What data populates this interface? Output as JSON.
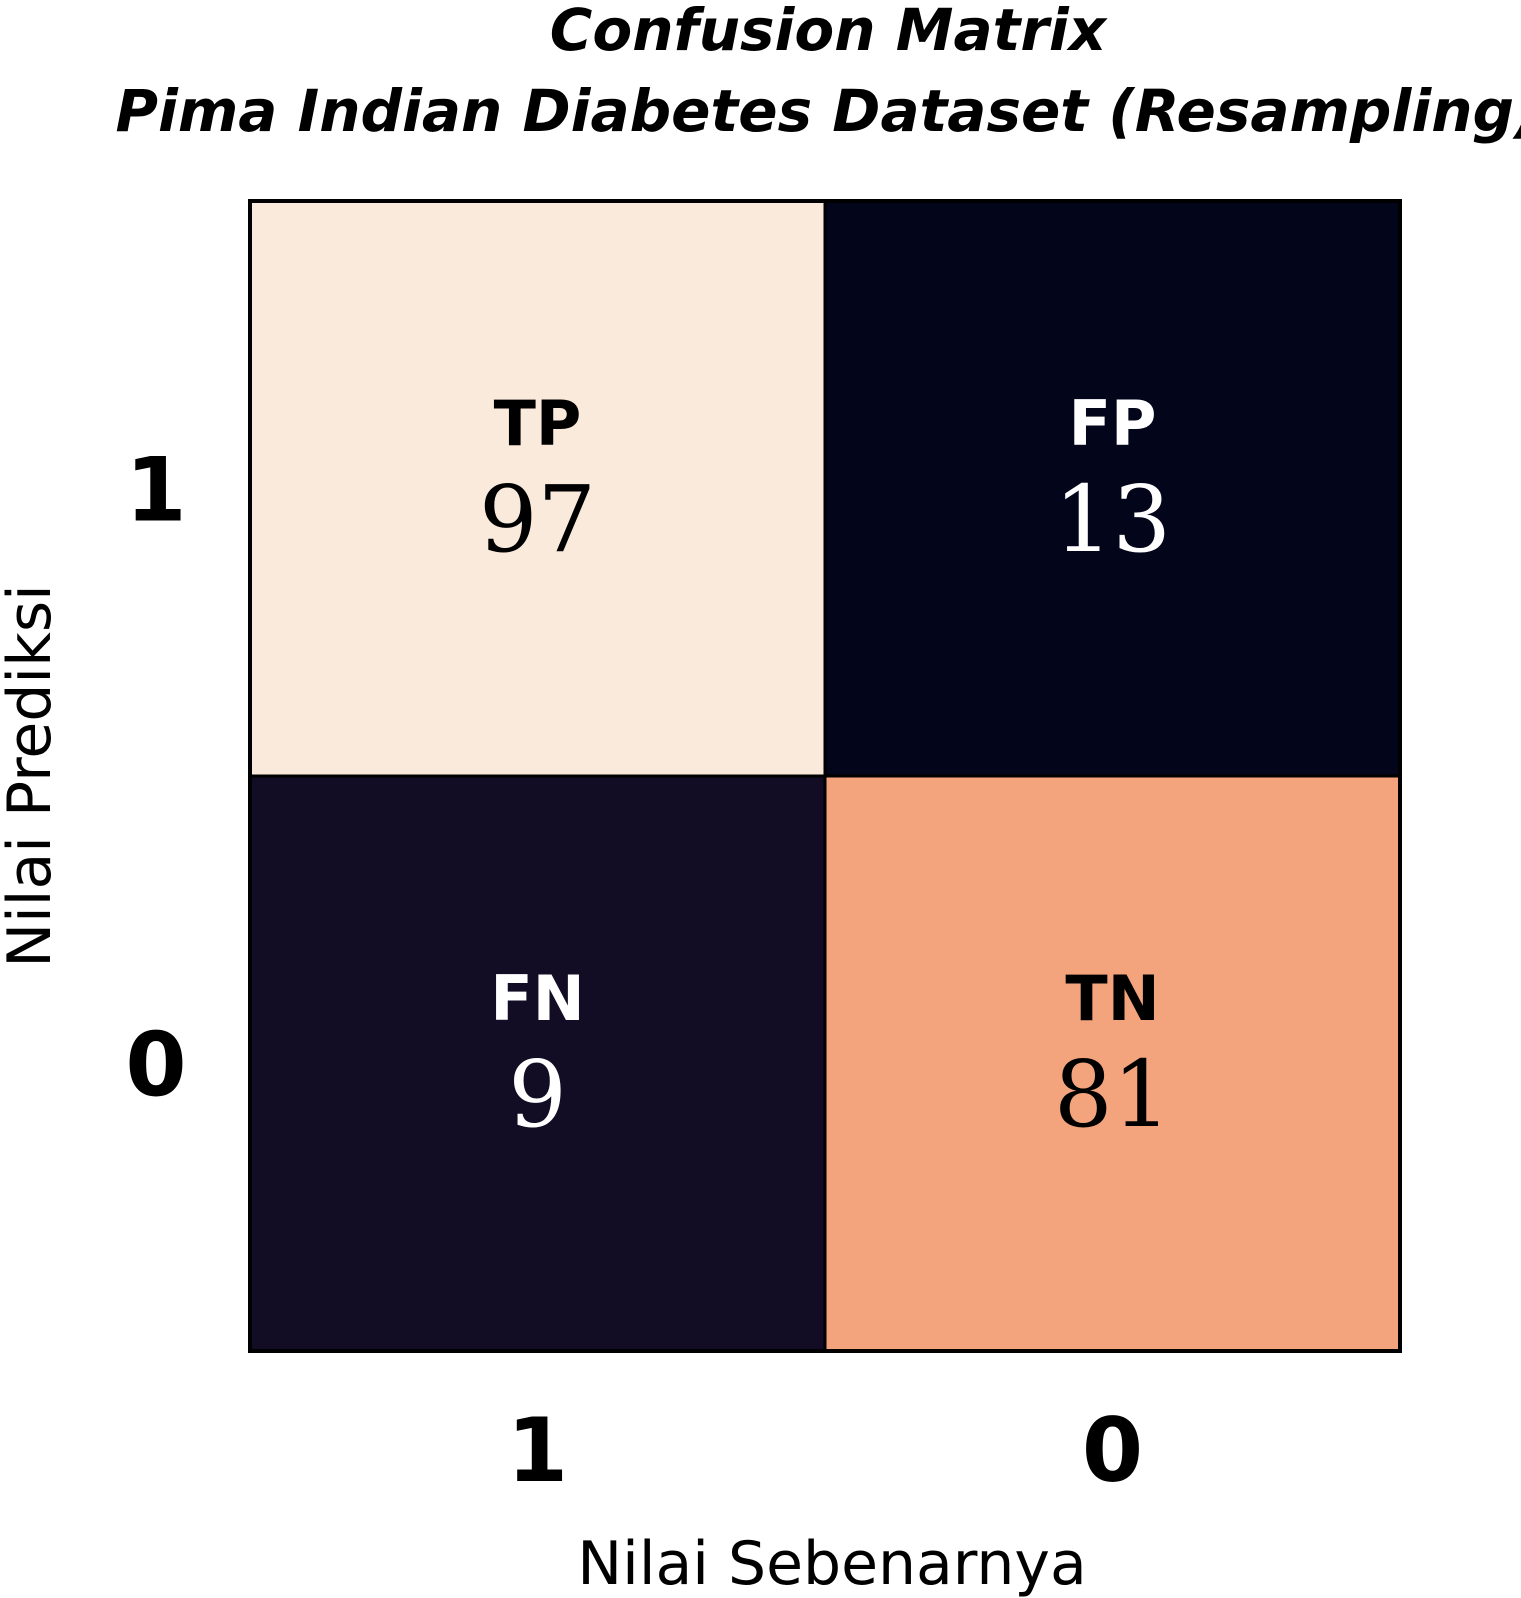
{
  "chart_data": {
    "type": "heatmap",
    "title": "Confusion Matrix",
    "subtitle": "Pima Indian Diabetes Dataset (Resampling)",
    "xlabel": "Nilai Sebenarnya",
    "ylabel": "Nilai Prediksi",
    "x_categories": [
      "1",
      "0"
    ],
    "y_categories": [
      "1",
      "0"
    ],
    "cells": [
      {
        "row": 0,
        "col": 0,
        "label": "TP",
        "value": 97,
        "color": "#FAEADC",
        "text_color": "#000000"
      },
      {
        "row": 0,
        "col": 1,
        "label": "FP",
        "value": 13,
        "color": "#03051A",
        "text_color": "#FFFFFF"
      },
      {
        "row": 1,
        "col": 0,
        "label": "FN",
        "value": 9,
        "color": "#120D24",
        "text_color": "#FFFFFF"
      },
      {
        "row": 1,
        "col": 1,
        "label": "TN",
        "value": 81,
        "color": "#F4A47C",
        "text_color": "#000000"
      }
    ]
  }
}
